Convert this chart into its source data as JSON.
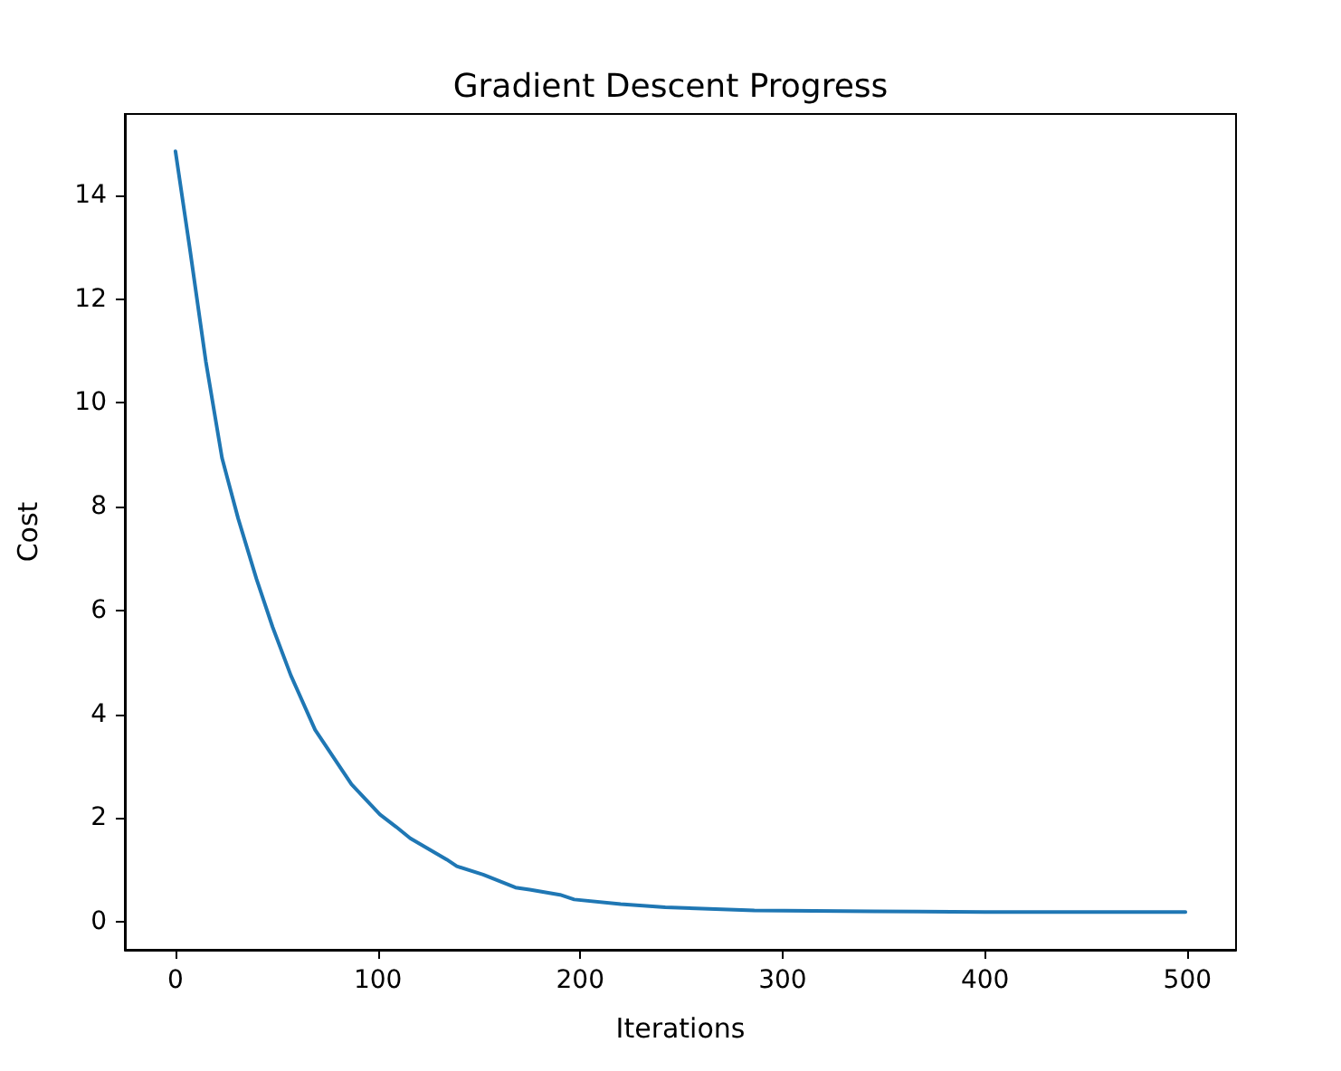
{
  "chart_data": {
    "type": "line",
    "title": "Gradient Descent Progress",
    "xlabel": "Iterations",
    "ylabel": "Cost",
    "series": [
      {
        "color": "#1f77b4",
        "x": [
          0,
          7,
          15,
          23,
          31,
          40,
          48,
          57,
          69,
          87,
          101,
          109,
          116,
          134,
          139,
          152,
          168,
          175,
          190,
          197,
          220,
          242,
          286,
          345,
          400,
          450,
          499
        ],
        "values": [
          14.85,
          13.0,
          10.8,
          8.94,
          7.77,
          6.61,
          5.68,
          4.75,
          3.7,
          2.65,
          2.07,
          1.83,
          1.61,
          1.2,
          1.07,
          0.91,
          0.66,
          0.62,
          0.52,
          0.43,
          0.34,
          0.28,
          0.22,
          0.2,
          0.19,
          0.19,
          0.19
        ]
      }
    ],
    "xlim": [
      -25,
      524
    ],
    "ylim": [
      -0.54,
      15.57
    ],
    "xticks": [
      0,
      100,
      200,
      300,
      400,
      500
    ],
    "yticks": [
      0,
      2,
      4,
      6,
      8,
      10,
      12,
      14
    ],
    "grid": false,
    "marker": "none",
    "line_style": "solid"
  }
}
